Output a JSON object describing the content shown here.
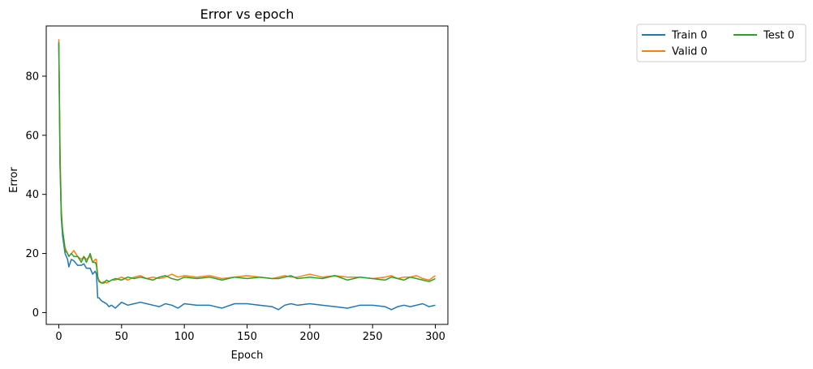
{
  "chart_data": {
    "type": "line",
    "title": "Error vs epoch",
    "xlabel": "Epoch",
    "ylabel": "Error",
    "xlim": [
      -10,
      310
    ],
    "ylim": [
      -4,
      97
    ],
    "xticks": [
      0,
      50,
      100,
      150,
      200,
      250,
      300
    ],
    "yticks": [
      0,
      20,
      40,
      60,
      80
    ],
    "grid": false,
    "legend_position": "outside-top-right",
    "legend_columns": 2,
    "series": [
      {
        "name": "Train 0",
        "color": "#1f77b4",
        "x": [
          0,
          1,
          2,
          3,
          5,
          7,
          8,
          10,
          12,
          15,
          18,
          20,
          22,
          25,
          27,
          29,
          30,
          31,
          32,
          34,
          36,
          38,
          40,
          42,
          45,
          50,
          55,
          60,
          65,
          70,
          75,
          80,
          85,
          90,
          95,
          100,
          110,
          120,
          130,
          140,
          150,
          160,
          170,
          175,
          180,
          185,
          190,
          200,
          210,
          220,
          230,
          240,
          250,
          260,
          265,
          270,
          275,
          280,
          285,
          290,
          295,
          300
        ],
        "y": [
          91,
          50,
          32,
          26,
          20,
          18,
          15.5,
          18,
          17.5,
          16,
          16,
          16.5,
          15,
          15,
          13,
          14,
          13,
          5,
          5,
          4,
          3.5,
          3,
          2,
          2.5,
          1.5,
          3.5,
          2.5,
          3,
          3.5,
          3,
          2.5,
          2,
          3,
          2.5,
          1.5,
          3,
          2.5,
          2.5,
          1.5,
          3,
          3,
          2.5,
          2,
          1,
          2.5,
          3,
          2.5,
          3,
          2.5,
          2,
          1.5,
          2.5,
          2.5,
          2,
          1,
          2,
          2.5,
          2,
          2.5,
          3,
          2,
          2.5
        ]
      },
      {
        "name": "Valid 0",
        "color": "#ff7f0e",
        "x": [
          0,
          1,
          2,
          3,
          5,
          7,
          8,
          10,
          12,
          15,
          18,
          20,
          22,
          25,
          27,
          29,
          30,
          31,
          32,
          34,
          36,
          38,
          40,
          42,
          45,
          50,
          55,
          60,
          65,
          70,
          75,
          80,
          85,
          90,
          95,
          100,
          110,
          120,
          130,
          140,
          150,
          160,
          170,
          175,
          180,
          185,
          190,
          200,
          210,
          220,
          230,
          240,
          250,
          260,
          265,
          270,
          275,
          280,
          285,
          290,
          295,
          300
        ],
        "y": [
          92.5,
          55,
          35,
          28,
          22,
          20,
          19,
          20,
          21,
          19,
          18,
          19,
          18,
          19,
          17,
          18,
          18,
          12,
          11,
          10,
          10.5,
          10,
          10.5,
          11,
          11,
          12,
          11,
          12,
          12.5,
          11.5,
          12,
          11.5,
          12,
          13,
          12,
          12.5,
          12,
          12.5,
          11.5,
          12,
          12.5,
          12,
          11.5,
          12,
          12.5,
          12,
          12,
          13,
          12,
          12.5,
          12,
          12,
          11.5,
          12,
          12.5,
          11.5,
          12,
          12,
          12.5,
          11.5,
          11,
          12.5
        ]
      },
      {
        "name": "Test 0",
        "color": "#2ca02c",
        "x": [
          0,
          1,
          2,
          3,
          5,
          7,
          8,
          10,
          12,
          15,
          18,
          20,
          22,
          25,
          27,
          29,
          30,
          31,
          32,
          34,
          36,
          38,
          40,
          42,
          45,
          50,
          55,
          60,
          65,
          70,
          75,
          80,
          85,
          90,
          95,
          100,
          110,
          120,
          130,
          140,
          150,
          160,
          170,
          175,
          180,
          185,
          190,
          200,
          210,
          220,
          230,
          240,
          250,
          260,
          265,
          270,
          275,
          280,
          285,
          290,
          295,
          300
        ],
        "y": [
          91.5,
          50,
          33,
          28,
          21,
          20,
          19,
          20,
          19,
          19,
          17,
          19,
          17,
          20,
          17,
          17,
          16,
          12,
          10.5,
          10,
          10,
          11,
          10.5,
          11,
          11.5,
          11,
          12,
          11.5,
          12,
          11.5,
          11,
          12,
          12.5,
          11.5,
          11,
          12,
          11.5,
          12,
          11,
          12,
          11.5,
          12,
          11.5,
          11.5,
          12,
          12.5,
          11.5,
          12,
          11.5,
          12.5,
          11,
          12,
          11.5,
          11,
          12,
          11.5,
          11,
          12,
          11.5,
          11,
          10.5,
          11.5
        ]
      }
    ]
  }
}
